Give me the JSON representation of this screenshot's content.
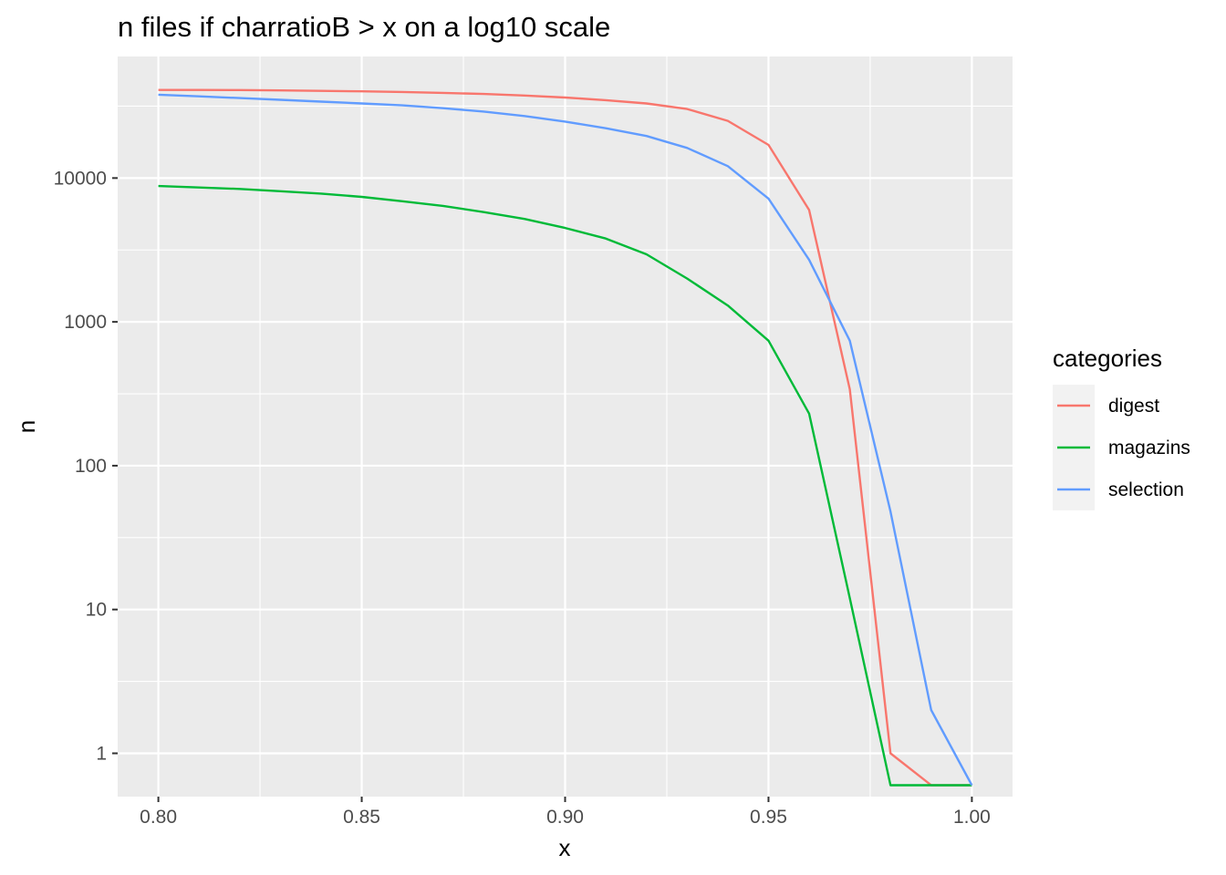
{
  "chart_data": {
    "type": "line",
    "title": "n files if charratioB > x on a log10 scale",
    "xlabel": "x",
    "ylabel": "n",
    "xlim": [
      0.79,
      1.01
    ],
    "x_ticks": [
      0.8,
      0.85,
      0.9,
      0.95,
      1.0
    ],
    "x_tick_labels": [
      "0.80",
      "0.85",
      "0.90",
      "0.95",
      "1.00"
    ],
    "y_scale": "log10",
    "ylim": [
      0.5,
      70000
    ],
    "y_ticks": [
      1,
      10,
      100,
      1000,
      10000
    ],
    "y_tick_labels": [
      "1",
      "10",
      "100",
      "1000",
      "10000"
    ],
    "grid": true,
    "legend_title": "categories",
    "legend_position": "right",
    "x": [
      0.8,
      0.81,
      0.82,
      0.83,
      0.84,
      0.85,
      0.86,
      0.87,
      0.88,
      0.89,
      0.9,
      0.91,
      0.92,
      0.93,
      0.94,
      0.95,
      0.96,
      0.97,
      0.98,
      0.99,
      1.0
    ],
    "series": [
      {
        "name": "digest",
        "color": "#F8766D",
        "values": [
          41000,
          41000,
          40900,
          40700,
          40400,
          40100,
          39700,
          39100,
          38400,
          37500,
          36300,
          34800,
          33000,
          30200,
          25000,
          17000,
          6000,
          340,
          1,
          0.6,
          0.6
        ]
      },
      {
        "name": "magazins",
        "color": "#00BA38",
        "values": [
          8800,
          8600,
          8400,
          8100,
          7800,
          7400,
          6900,
          6400,
          5800,
          5200,
          4500,
          3800,
          2950,
          2000,
          1300,
          740,
          230,
          12,
          0.6,
          0.6,
          0.6
        ]
      },
      {
        "name": "selection",
        "color": "#619CFF",
        "values": [
          38000,
          37000,
          36000,
          35000,
          34000,
          33000,
          32000,
          30600,
          29000,
          27000,
          24700,
          22200,
          19600,
          16200,
          12100,
          7200,
          2700,
          740,
          48,
          2,
          0.6
        ]
      }
    ]
  }
}
